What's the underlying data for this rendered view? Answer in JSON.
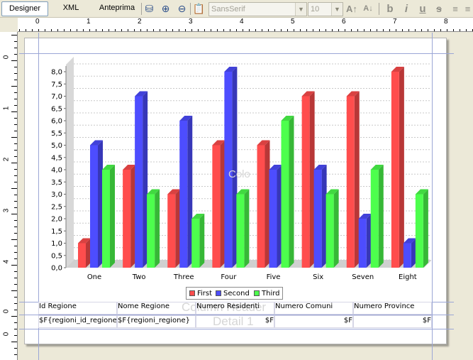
{
  "toolbar": {
    "tabs": [
      {
        "label": "Designer",
        "active": true
      },
      {
        "label": "XML",
        "active": false
      },
      {
        "label": "Anteprima",
        "active": false
      }
    ],
    "font_family": "SansSerif",
    "font_size": "10"
  },
  "ruler": {
    "top_labels": [
      "0",
      "1",
      "2",
      "3",
      "4",
      "5",
      "6",
      "7",
      "8"
    ],
    "left_labels": [
      "0",
      "1",
      "2",
      "3",
      "4",
      "0",
      "0"
    ]
  },
  "report": {
    "column_headers": [
      "Id Regione",
      "Nome Regione",
      "Numero Residenti",
      "Numero Comuni",
      "Numero Province"
    ],
    "detail_fields": [
      "$F{regioni_id_regione}",
      "$F{regioni_regione}",
      "$F",
      "$F",
      "$F"
    ],
    "watermarks": {
      "column_header": "Column Header",
      "detail": "Detail 1",
      "chart": "Colo"
    }
  },
  "chart_data": {
    "type": "bar",
    "categories": [
      "One",
      "Two",
      "Three",
      "Four",
      "Five",
      "Six",
      "Seven",
      "Eight"
    ],
    "series": [
      {
        "name": "First",
        "color": "#ff4d4d",
        "values": [
          1.0,
          4.0,
          3.0,
          5.0,
          5.0,
          7.0,
          7.0,
          8.0
        ]
      },
      {
        "name": "Second",
        "color": "#4d4dff",
        "values": [
          5.0,
          7.0,
          6.0,
          8.0,
          4.0,
          4.0,
          2.0,
          1.0
        ]
      },
      {
        "name": "Third",
        "color": "#4dff4d",
        "values": [
          4.0,
          3.0,
          2.0,
          3.0,
          6.0,
          3.0,
          4.0,
          3.0
        ]
      }
    ],
    "y_ticks": [
      "0,0",
      "0,5",
      "1,0",
      "1,5",
      "2,0",
      "2,5",
      "3,0",
      "3,5",
      "4,0",
      "4,5",
      "5,0",
      "5,5",
      "6,0",
      "6,5",
      "7,0",
      "7,5",
      "8,0"
    ],
    "ylim": [
      0,
      8
    ],
    "grid": true,
    "legend_position": "bottom"
  }
}
